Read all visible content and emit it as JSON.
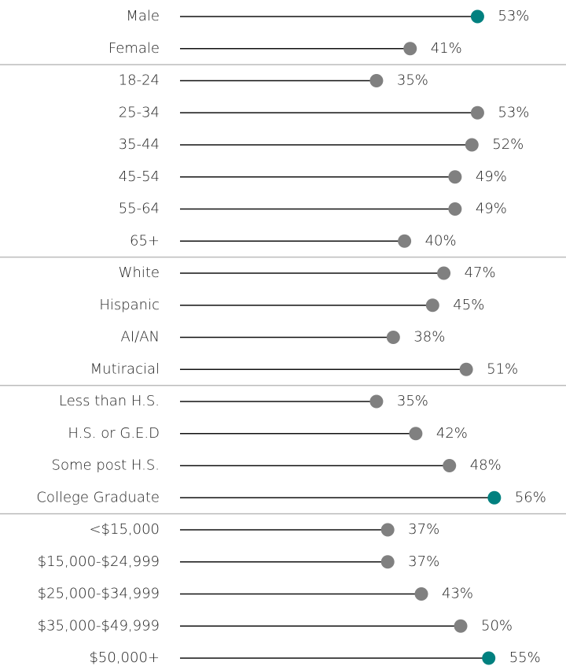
{
  "chart_data": {
    "type": "lollipop",
    "groups": [
      {
        "categories": [
          "Male",
          "Female"
        ],
        "values": [
          53,
          41
        ],
        "value_labels": [
          "53%",
          "41%"
        ],
        "colors": [
          "#00807f",
          "#808080"
        ]
      },
      {
        "categories": [
          "18-24",
          "25-34",
          "35-44",
          "45-54",
          "55-64",
          "65+"
        ],
        "values": [
          35,
          53,
          52,
          49,
          49,
          40
        ],
        "value_labels": [
          "35%",
          "53%",
          "52%",
          "49%",
          "49%",
          "40%"
        ],
        "colors": [
          "#808080",
          "#808080",
          "#808080",
          "#808080",
          "#808080",
          "#808080"
        ]
      },
      {
        "categories": [
          "White",
          "Hispanic",
          "AI/AN",
          "Mutiracial"
        ],
        "values": [
          47,
          45,
          38,
          51
        ],
        "value_labels": [
          "47%",
          "45%",
          "38%",
          "51%"
        ],
        "colors": [
          "#808080",
          "#808080",
          "#808080",
          "#808080"
        ]
      },
      {
        "categories": [
          "Less than H.S.",
          "H.S. or G.E.D",
          "Some post H.S.",
          "College Graduate"
        ],
        "values": [
          35,
          42,
          48,
          56
        ],
        "value_labels": [
          "35%",
          "42%",
          "48%",
          "56%"
        ],
        "colors": [
          "#808080",
          "#808080",
          "#808080",
          "#00807f"
        ]
      },
      {
        "categories": [
          "<$15,000",
          "$15,000-$24,999",
          "$25,000-$34,999",
          "$35,000-$49,999",
          "$50,000+"
        ],
        "values": [
          37,
          37,
          43,
          50,
          55
        ],
        "value_labels": [
          "37%",
          "37%",
          "43%",
          "50%",
          "55%"
        ],
        "colors": [
          "#808080",
          "#808080",
          "#808080",
          "#808080",
          "#00807f"
        ]
      }
    ]
  }
}
